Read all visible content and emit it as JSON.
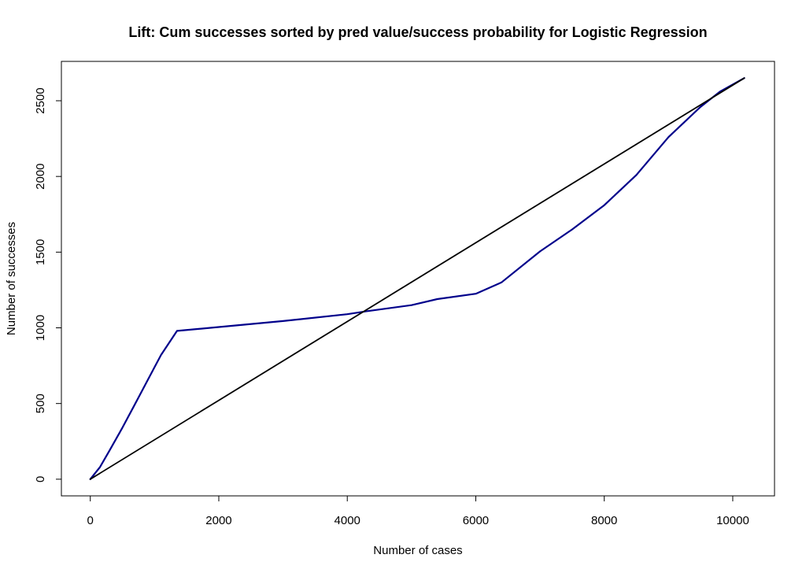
{
  "chart_data": {
    "type": "line",
    "title": "Lift: Cum successes sorted by pred value/success probability for Logistic Regression",
    "xlabel": "Number of cases",
    "ylabel": "Number of successes",
    "xlim": [
      -450,
      10650
    ],
    "ylim": [
      -110,
      2760
    ],
    "x_ticks": [
      0,
      2000,
      4000,
      6000,
      8000,
      10000
    ],
    "x_tick_labels": [
      "0",
      "2000",
      "4000",
      "6000",
      "8000",
      "10000"
    ],
    "y_ticks": [
      0,
      500,
      1000,
      1500,
      2000,
      2500
    ],
    "y_tick_labels": [
      "0",
      "500",
      "1000",
      "1500",
      "2000",
      "2500"
    ],
    "grid": false,
    "series": [
      {
        "color": "#00008b",
        "x": [
          0,
          150,
          300,
          500,
          700,
          900,
          1100,
          1350,
          2000,
          3000,
          4000,
          4300,
          5000,
          5400,
          6000,
          6400,
          7000,
          7500,
          8000,
          8500,
          9000,
          9500,
          9800,
          10180
        ],
        "y": [
          0,
          80,
          190,
          340,
          500,
          660,
          820,
          980,
          1005,
          1045,
          1090,
          1110,
          1150,
          1190,
          1225,
          1300,
          1505,
          1650,
          1810,
          2010,
          2260,
          2460,
          2560,
          2650
        ]
      },
      {
        "color": "#000000",
        "x": [
          0,
          10180
        ],
        "y": [
          0,
          2650
        ]
      }
    ]
  }
}
